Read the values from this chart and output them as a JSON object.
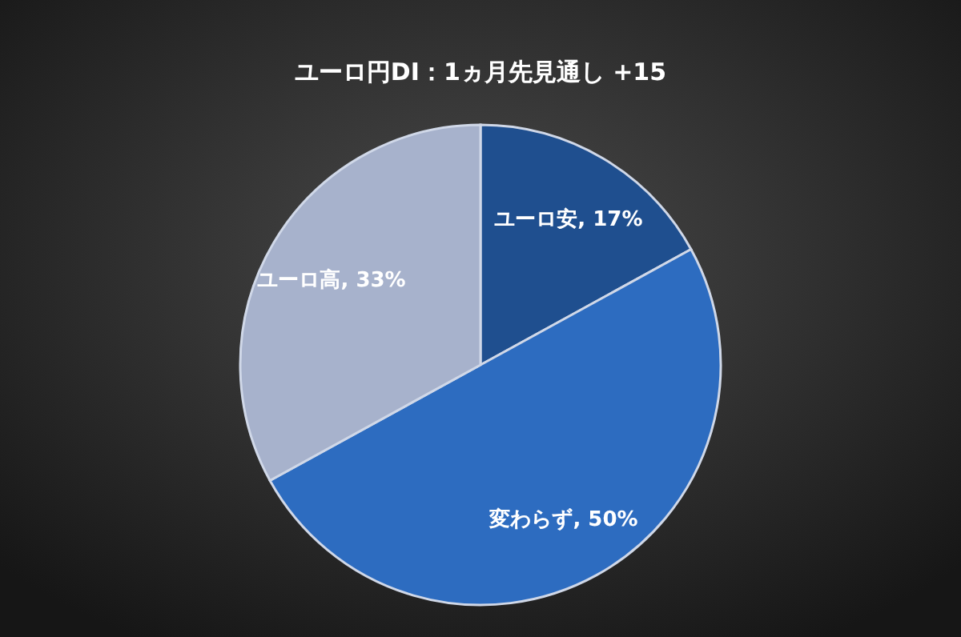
{
  "chart_data": {
    "type": "pie",
    "title": "ユーロ円DI：1ヵ月先見通し +15",
    "categories": [
      "ユーロ安",
      "変わらず",
      "ユーロ高"
    ],
    "values": [
      17,
      50,
      33
    ],
    "value_labels": [
      "17%",
      "50%",
      "33%"
    ],
    "colors": [
      "#1f4f8f",
      "#2d6cc0",
      "#a7b2cc"
    ],
    "legend": false
  }
}
